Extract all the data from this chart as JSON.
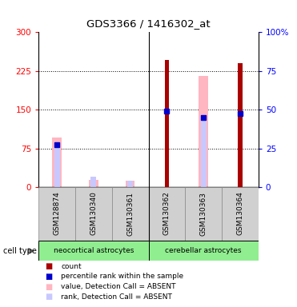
{
  "title": "GDS3366 / 1416302_at",
  "samples": [
    "GSM128874",
    "GSM130340",
    "GSM130361",
    "GSM130362",
    "GSM130363",
    "GSM130364"
  ],
  "left_ylim": [
    0,
    300
  ],
  "right_ylim": [
    0,
    100
  ],
  "left_yticks": [
    0,
    75,
    150,
    225,
    300
  ],
  "right_yticks": [
    0,
    25,
    50,
    75,
    100
  ],
  "left_yticklabels": [
    "0",
    "75",
    "150",
    "225",
    "300"
  ],
  "right_yticklabels": [
    "0",
    "25",
    "50",
    "75",
    "100%"
  ],
  "count_values": [
    0,
    0,
    0,
    247,
    0,
    240
  ],
  "percentile_values": [
    82,
    0,
    0,
    147,
    135,
    142
  ],
  "absent_value_values": [
    97,
    15,
    12,
    0,
    215,
    0
  ],
  "absent_rank_values": [
    82,
    21,
    12,
    0,
    132,
    0
  ],
  "count_color": "#aa0000",
  "percentile_color": "#0000cc",
  "absent_value_color": "#ffb6c1",
  "absent_rank_color": "#c8c8ff",
  "bg_color": "#d0d0d0",
  "cell_type_color": "#90EE90",
  "grid_color": "#000000",
  "neocortical_label": "neocortical astrocytes",
  "cerebellar_label": "cerebellar astrocytes",
  "legend_items": [
    {
      "color": "#aa0000",
      "label": "count"
    },
    {
      "color": "#0000cc",
      "label": "percentile rank within the sample"
    },
    {
      "color": "#ffb6c1",
      "label": "value, Detection Call = ABSENT"
    },
    {
      "color": "#c8c8ff",
      "label": "rank, Detection Call = ABSENT"
    }
  ]
}
